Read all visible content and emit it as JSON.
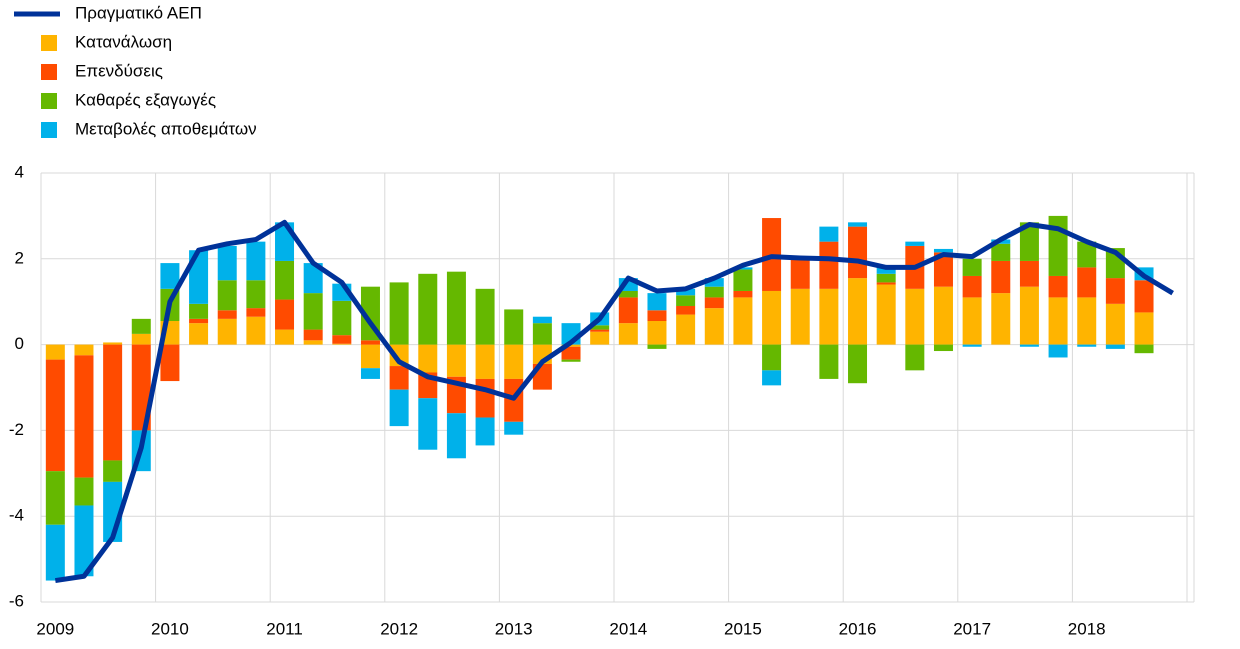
{
  "chart_data": {
    "type": "bar",
    "stacked": true,
    "categories": [
      "2009",
      null,
      null,
      null,
      "2010",
      null,
      null,
      null,
      "2011",
      null,
      null,
      null,
      "2012",
      null,
      null,
      null,
      "2013",
      null,
      null,
      null,
      "2014",
      null,
      null,
      null,
      "2015",
      null,
      null,
      null,
      "2016",
      null,
      null,
      null,
      "2017",
      null,
      null,
      null,
      "2018",
      null,
      null,
      null
    ],
    "series": [
      {
        "name": "Πραγματικό ΑΕΠ",
        "type": "line",
        "color": "#003299",
        "values": [
          -5.5,
          -5.4,
          -4.5,
          -2.4,
          1.0,
          2.2,
          2.35,
          2.45,
          2.85,
          1.9,
          1.45,
          0.5,
          -0.4,
          -0.75,
          -0.9,
          -1.05,
          -1.25,
          -0.4,
          0.05,
          0.6,
          1.55,
          1.25,
          1.3,
          1.55,
          1.85,
          2.05,
          2.02,
          2.0,
          1.95,
          1.8,
          1.8,
          2.1,
          2.05,
          2.45,
          2.8,
          2.7,
          2.4,
          2.15,
          1.6,
          1.2
        ]
      },
      {
        "name": "Κατανάλωση",
        "type": "bar",
        "color": "#ffb400",
        "values": [
          -0.35,
          -0.25,
          0.05,
          0.25,
          0.55,
          0.5,
          0.6,
          0.65,
          0.35,
          0.1,
          0.02,
          -0.55,
          -0.5,
          -0.65,
          -0.75,
          -0.8,
          -0.8,
          -0.45,
          -0.05,
          0.3,
          0.5,
          0.55,
          0.7,
          0.85,
          1.1,
          1.25,
          1.3,
          1.3,
          1.55,
          1.4,
          1.3,
          1.35,
          1.1,
          1.2,
          1.35,
          1.1,
          1.1,
          0.95,
          0.75,
          null
        ]
      },
      {
        "name": "Επενδύσεις",
        "type": "bar",
        "color": "#ff4b00",
        "values": [
          -2.6,
          -2.85,
          -2.7,
          -2.0,
          -0.85,
          0.1,
          0.2,
          0.2,
          0.7,
          0.25,
          0.2,
          0.1,
          -0.55,
          -0.6,
          -0.85,
          -0.9,
          -1.0,
          -0.6,
          -0.3,
          0.05,
          0.6,
          0.25,
          0.2,
          0.25,
          0.15,
          1.7,
          0.7,
          1.1,
          1.2,
          0.05,
          1.0,
          0.8,
          0.5,
          0.75,
          0.6,
          0.5,
          0.7,
          0.6,
          0.75,
          null
        ]
      },
      {
        "name": "Καθαρές εξαγωγές",
        "type": "bar",
        "color": "#65b800",
        "values": [
          -1.25,
          -0.65,
          -0.5,
          0.35,
          0.75,
          0.35,
          0.7,
          0.65,
          0.9,
          0.85,
          0.8,
          1.25,
          1.45,
          1.65,
          1.7,
          1.3,
          0.82,
          0.5,
          -0.05,
          0.1,
          0.15,
          -0.1,
          0.25,
          0.25,
          0.5,
          -0.6,
          0.0,
          -0.8,
          -0.9,
          0.2,
          -0.6,
          -0.15,
          0.4,
          0.4,
          0.9,
          1.4,
          0.6,
          0.7,
          -0.2,
          null
        ]
      },
      {
        "name": "Μεταβολές αποθεμάτων",
        "type": "bar",
        "color": "#00b1ea",
        "values": [
          -1.3,
          -1.65,
          -1.4,
          -0.95,
          0.6,
          1.25,
          0.8,
          0.9,
          0.9,
          0.7,
          0.4,
          -0.25,
          -0.85,
          -1.2,
          -1.05,
          -0.65,
          -0.3,
          0.15,
          0.5,
          0.3,
          0.3,
          0.4,
          0.15,
          0.2,
          0.05,
          -0.35,
          0.0,
          0.35,
          0.1,
          0.15,
          0.1,
          0.08,
          -0.05,
          0.1,
          -0.05,
          -0.3,
          -0.05,
          -0.1,
          0.3,
          null
        ]
      }
    ],
    "ylim": [
      -6,
      4
    ],
    "yticks": [
      -6,
      -4,
      -2,
      0,
      2,
      4
    ],
    "grid": true,
    "legend": "top-left"
  }
}
